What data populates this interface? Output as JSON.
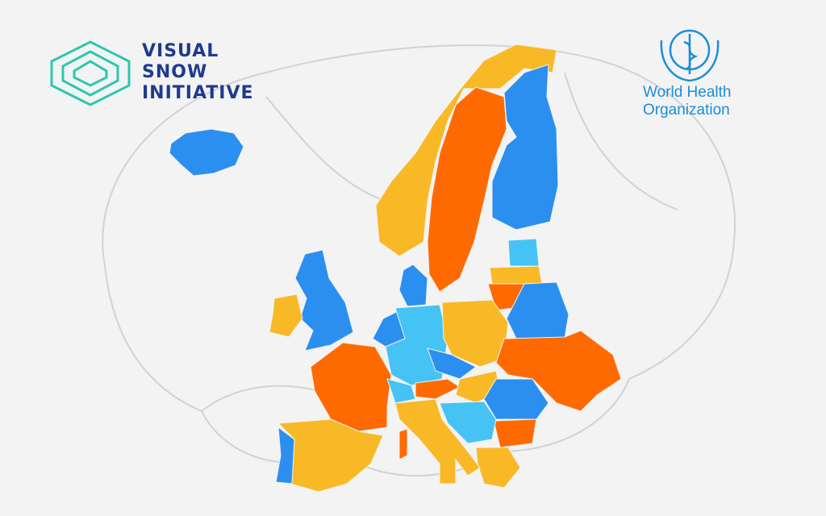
{
  "logos": {
    "left": {
      "lines": [
        "VISUAL",
        "SNOW",
        "INITIATIVE"
      ]
    },
    "right": {
      "lines": [
        "World Health",
        "Organization"
      ]
    }
  }
}
